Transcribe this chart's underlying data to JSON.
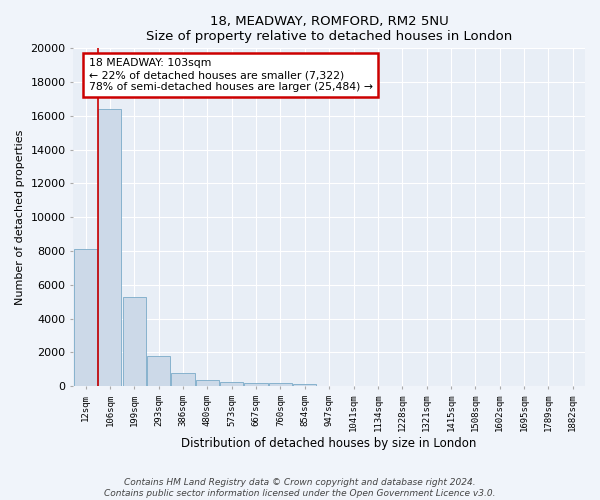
{
  "title1": "18, MEADWAY, ROMFORD, RM2 5NU",
  "title2": "Size of property relative to detached houses in London",
  "xlabel": "Distribution of detached houses by size in London",
  "ylabel": "Number of detached properties",
  "bar_color": "#ccd9e8",
  "bar_edge_color": "#7aaac8",
  "bg_color": "#e8eef6",
  "grid_color": "#ffffff",
  "fig_color": "#f0f4fa",
  "categories": [
    "12sqm",
    "106sqm",
    "199sqm",
    "293sqm",
    "386sqm",
    "480sqm",
    "573sqm",
    "667sqm",
    "760sqm",
    "854sqm",
    "947sqm",
    "1041sqm",
    "1134sqm",
    "1228sqm",
    "1321sqm",
    "1415sqm",
    "1508sqm",
    "1602sqm",
    "1695sqm",
    "1789sqm",
    "1882sqm"
  ],
  "values": [
    8100,
    16400,
    5300,
    1780,
    780,
    350,
    230,
    200,
    190,
    155,
    0,
    0,
    0,
    0,
    0,
    0,
    0,
    0,
    0,
    0,
    0
  ],
  "ylim": [
    0,
    20000
  ],
  "yticks": [
    0,
    2000,
    4000,
    6000,
    8000,
    10000,
    12000,
    14000,
    16000,
    18000,
    20000
  ],
  "property_line_x": 0.5,
  "annotation_text": "18 MEADWAY: 103sqm\n← 22% of detached houses are smaller (7,322)\n78% of semi-detached houses are larger (25,484) →",
  "annotation_box_color": "#ffffff",
  "annotation_box_edge": "#cc0000",
  "line_color": "#cc0000",
  "footer": "Contains HM Land Registry data © Crown copyright and database right 2024.\nContains public sector information licensed under the Open Government Licence v3.0."
}
